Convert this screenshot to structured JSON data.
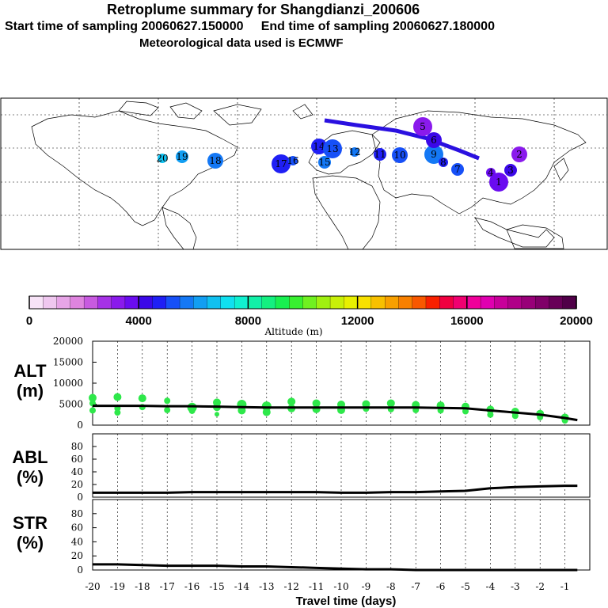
{
  "header": {
    "title": "Retroplume summary for Shangdianzi_200606",
    "line2": "Start time of sampling 20060627.150000     End time of sampling 20060627.180000",
    "line3": "Meteorological data used is ECMWF"
  },
  "map": {
    "plume_labels": [
      "20",
      "19",
      "18",
      "17",
      "16",
      "15",
      "14",
      "13",
      "12",
      "11",
      "10",
      "9",
      "8",
      "7",
      "6",
      "5",
      "4",
      "3",
      "2",
      "1"
    ],
    "colors": {
      "ocean": "#ffffff",
      "coast": "#000000"
    }
  },
  "colorbar": {
    "tick_labels": [
      "0",
      "4000",
      "8000",
      "12000",
      "16000",
      "20000"
    ],
    "label": "Altitude (m)",
    "colors": [
      "#f7e3f7",
      "#efc7ef",
      "#e7a5e7",
      "#df84df",
      "#c85ae0",
      "#a632e6",
      "#8a1aec",
      "#6a0cf0",
      "#3b08e8",
      "#1f1ff5",
      "#1750f7",
      "#1478f5",
      "#129ef2",
      "#10c0f0",
      "#10e0f0",
      "#10f0d0",
      "#12f0a8",
      "#14f080",
      "#18f050",
      "#38f030",
      "#70f020",
      "#a0f010",
      "#c8f008",
      "#e8f000",
      "#f8e000",
      "#f8c000",
      "#f8a000",
      "#f88000",
      "#f85800",
      "#f82000",
      "#f00040",
      "#f00070",
      "#f0009a",
      "#e000b0",
      "#c8009a",
      "#b00088",
      "#980078",
      "#800068",
      "#680058",
      "#500048"
    ]
  },
  "chart_data": [
    {
      "type": "line",
      "panel": "ALT",
      "ylabel": "ALT\n(m)",
      "ylabel_line1": "ALT",
      "ylabel_line2": "(m)",
      "ylim": [
        0,
        20000
      ],
      "yticks": [
        "0",
        "5000",
        "10000",
        "15000",
        "20000"
      ],
      "x": [
        -20,
        -19,
        -18,
        -17,
        -16,
        -15,
        -14,
        -13,
        -12,
        -11,
        -10,
        -9,
        -8,
        -7,
        -6,
        -5,
        -4,
        -3,
        -2,
        -1,
        -0.5
      ],
      "values": [
        4600,
        4600,
        4600,
        4500,
        4500,
        4400,
        4300,
        4200,
        4200,
        4200,
        4200,
        4200,
        4200,
        4200,
        4100,
        4000,
        3500,
        3000,
        2500,
        1700,
        1200
      ],
      "scatter_color": "#2ee84a",
      "scatter_x": [
        -20,
        -20,
        -20,
        -19,
        -19,
        -19,
        -18,
        -18,
        -17,
        -17,
        -16,
        -16,
        -15,
        -15,
        -15,
        -14,
        -14,
        -13,
        -13,
        -12,
        -12,
        -11,
        -11,
        -10,
        -10,
        -9,
        -9,
        -8,
        -8,
        -7,
        -7,
        -6,
        -6,
        -5,
        -5,
        -4,
        -4,
        -3,
        -3,
        -2,
        -2,
        -1,
        -1
      ],
      "scatter_y": [
        6500,
        3500,
        5200,
        6700,
        4000,
        3000,
        6400,
        4300,
        5800,
        3600,
        4200,
        3400,
        5400,
        4300,
        2600,
        4900,
        3500,
        4500,
        3100,
        5600,
        4000,
        5200,
        3800,
        4900,
        3600,
        5000,
        3900,
        5200,
        3800,
        4800,
        3600,
        4700,
        3500,
        4400,
        3300,
        3700,
        2500,
        3200,
        2200,
        2700,
        1900,
        1800,
        1100
      ],
      "scatter_size": [
        5,
        4,
        4,
        5,
        4,
        4,
        5,
        4,
        4,
        4,
        6,
        4,
        5,
        5,
        3,
        6,
        5,
        6,
        5,
        5,
        5,
        5,
        5,
        5,
        5,
        5,
        4,
        5,
        4,
        5,
        4,
        5,
        4,
        5,
        4,
        5,
        4,
        5,
        4,
        5,
        4,
        5,
        4
      ]
    },
    {
      "type": "line",
      "panel": "ABL",
      "ylabel_line1": "ABL",
      "ylabel_line2": "(%)",
      "ylim": [
        0,
        100
      ],
      "yticks": [
        "0",
        "20",
        "40",
        "60",
        "80"
      ],
      "x": [
        -20,
        -19,
        -18,
        -17,
        -16,
        -15,
        -14,
        -13,
        -12,
        -11,
        -10,
        -9,
        -8,
        -7,
        -6,
        -5,
        -4,
        -3,
        -2,
        -1,
        -0.5
      ],
      "values": [
        7,
        7,
        7,
        7,
        8,
        8,
        8,
        8,
        8,
        8,
        7,
        7,
        8,
        8,
        9,
        10,
        14,
        16,
        17,
        18,
        18
      ]
    },
    {
      "type": "line",
      "panel": "STR",
      "ylabel_line1": "STR",
      "ylabel_line2": "(%)",
      "ylim": [
        0,
        100
      ],
      "yticks": [
        "0",
        "20",
        "40",
        "60",
        "80"
      ],
      "x": [
        -20,
        -19,
        -18,
        -17,
        -16,
        -15,
        -14,
        -13,
        -12,
        -11,
        -10,
        -9,
        -8,
        -7,
        -6,
        -5,
        -4,
        -3,
        -2,
        -1,
        -0.5
      ],
      "values": [
        8,
        8,
        7,
        6,
        6,
        6,
        5,
        5,
        4,
        3,
        2,
        1,
        1,
        0,
        0,
        0,
        0,
        0,
        0,
        0,
        0
      ]
    }
  ],
  "xaxis": {
    "label": "Travel time (days)",
    "tick_labels": [
      "-20",
      "-19",
      "-18",
      "-17",
      "-16",
      "-15",
      "-14",
      "-13",
      "-12",
      "-11",
      "-10",
      "-9",
      "-8",
      "-7",
      "-6",
      "-5",
      "-4",
      "-3",
      "-2",
      "-1"
    ]
  }
}
